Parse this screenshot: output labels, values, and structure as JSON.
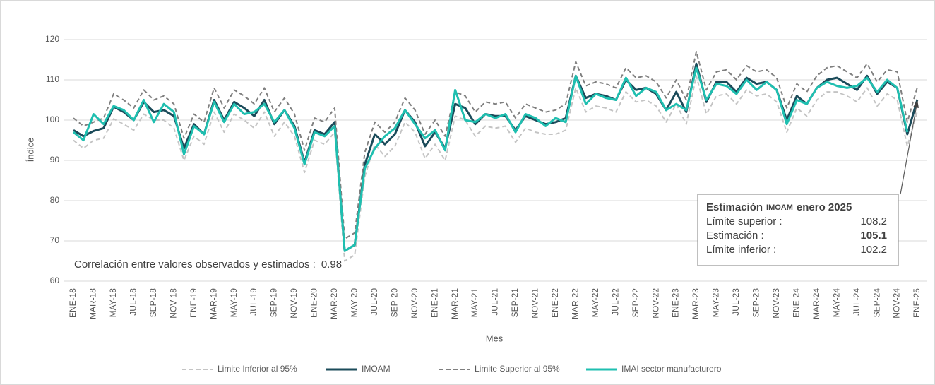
{
  "chart_data": {
    "type": "line",
    "y_label": "Índice",
    "x_label": "Mes",
    "categories": [
      "ENE-18",
      null,
      "MAR-18",
      null,
      "MAY-18",
      null,
      "JUL-18",
      null,
      "SEP-18",
      null,
      "NOV-18",
      null,
      "ENE-19",
      null,
      "MAR-19",
      null,
      "MAY-19",
      null,
      "JUL-19",
      null,
      "SEP-19",
      null,
      "NOV-19",
      null,
      "ENE-20",
      null,
      "MAR-20",
      null,
      "MAY-20",
      null,
      "JUL-20",
      null,
      "SEP-20",
      null,
      "NOV-20",
      null,
      "ENE-21",
      null,
      "MAR-21",
      null,
      "MAY-21",
      null,
      "JUL-21",
      null,
      "SEP-21",
      null,
      "NOV-21",
      null,
      "ENE-22",
      null,
      "MAR-22",
      null,
      "MAY-22",
      null,
      "JUL-22",
      null,
      "SEP-22",
      null,
      "NOV-22",
      null,
      "ENE-23",
      null,
      "MAR-23",
      null,
      "MAY-23",
      null,
      "JUL-23",
      null,
      "SEP-23",
      null,
      "NOV-23",
      null,
      "ENE-24",
      null,
      "MAR-24",
      null,
      "MAY-24",
      null,
      "JUL-24",
      null,
      "SEP-24",
      null,
      "NOV-24",
      null,
      "ENE-25"
    ],
    "series": [
      {
        "name": "Limite Inferior al 95%",
        "color": "#c4c4c4",
        "dash": true,
        "values": [
          95,
          93,
          95,
          95.5,
          100.3,
          99,
          97.5,
          101.5,
          100,
          100,
          98,
          90,
          96,
          94,
          102,
          97,
          101.5,
          100,
          98,
          102,
          96,
          99.5,
          96,
          87,
          95,
          94,
          97,
          65,
          66.5,
          86,
          94,
          91,
          93.5,
          99.5,
          97,
          90.5,
          94,
          90,
          101,
          100,
          96,
          98.5,
          98,
          98.5,
          94.5,
          98,
          97,
          96.5,
          96.5,
          97.5,
          108,
          102,
          103.5,
          103,
          102,
          107,
          104.5,
          105,
          103.5,
          99.5,
          104,
          99,
          111,
          101.5,
          106,
          106.5,
          104,
          107.5,
          106,
          106.5,
          104.5,
          97,
          103,
          101,
          105,
          107,
          107,
          106,
          104.5,
          108,
          103.5,
          106.5,
          105,
          93.5,
          102.2
        ]
      },
      {
        "name": "IMOAM",
        "color": "#1b4b5a",
        "dash": false,
        "values": [
          97.5,
          96,
          97.3,
          98,
          103.3,
          102,
          100,
          104.5,
          102,
          102.5,
          101,
          93,
          99,
          96.5,
          105,
          100,
          104.5,
          103,
          101,
          105,
          99,
          102.5,
          98.5,
          89.5,
          97.5,
          96.5,
          99.5,
          67.5,
          69,
          89,
          96.5,
          94,
          96.5,
          102.5,
          99.5,
          93.5,
          97,
          93,
          104,
          103,
          99,
          101.5,
          101,
          101,
          97.5,
          101,
          100,
          99,
          99.5,
          100.5,
          111,
          105.5,
          106.5,
          106,
          105,
          110,
          107.5,
          108,
          106.5,
          102.5,
          107,
          102,
          114,
          104.5,
          109.5,
          109.5,
          107,
          110.5,
          109,
          109.5,
          107.5,
          100,
          106,
          104,
          108,
          110,
          110.5,
          109,
          107.5,
          111,
          106.5,
          109.5,
          108,
          96.5,
          105.1
        ]
      },
      {
        "name": "Limite Superior al 95%",
        "color": "#7f7f7f",
        "dash": true,
        "values": [
          100.5,
          98.5,
          99.5,
          100.5,
          106.5,
          105,
          103,
          107.5,
          105,
          106,
          104,
          95.5,
          101.5,
          99.5,
          108,
          103,
          107.5,
          106,
          104,
          108,
          102,
          105.5,
          101.5,
          92.5,
          100.5,
          99.5,
          103,
          70.5,
          72,
          92,
          99.5,
          97,
          99.5,
          105.5,
          102.5,
          96.5,
          100,
          96,
          107,
          106,
          102,
          104.5,
          104,
          104.5,
          100.5,
          104,
          103,
          102,
          102.5,
          104,
          114.5,
          108.5,
          109.5,
          109,
          108,
          113,
          110.5,
          111,
          109.5,
          105.5,
          110,
          105,
          117,
          107.5,
          112,
          112.5,
          110,
          113.5,
          112,
          112.5,
          110.5,
          103,
          109,
          107,
          111,
          113,
          113.5,
          112,
          110.5,
          114,
          109.5,
          112.5,
          112,
          99.5,
          108.2
        ]
      },
      {
        "name": "IMAI sector manufacturero",
        "color": "#1fbfb0",
        "dash": false,
        "values": [
          97,
          95,
          101.5,
          99,
          103.5,
          102.5,
          100,
          105,
          99.5,
          104,
          102,
          91.5,
          98.5,
          96.5,
          104.5,
          99.5,
          104,
          101.5,
          102,
          104,
          99.5,
          102.5,
          98,
          89,
          97,
          96,
          98.5,
          67.5,
          69,
          88,
          93,
          96,
          98,
          102.5,
          99,
          95.5,
          97.5,
          92.5,
          107.5,
          100,
          99.5,
          101.5,
          100.5,
          101.5,
          97,
          101.5,
          100.5,
          98.5,
          100.5,
          99.5,
          111,
          104,
          106.5,
          105.5,
          105,
          110.5,
          106,
          108,
          107,
          102.5,
          104,
          102.5,
          113,
          105,
          109,
          108.5,
          106.5,
          110,
          107.5,
          109.5,
          107.5,
          99,
          105,
          104,
          108,
          109.5,
          108.5,
          108,
          108.5,
          110.5,
          107,
          110,
          108,
          97,
          null
        ]
      }
    ],
    "ylim": [
      60,
      120
    ],
    "yticks": [
      60,
      70,
      80,
      90,
      100,
      110,
      120
    ],
    "grid": true,
    "legend": "bottom",
    "correlation": {
      "label": "Correlación entre valores observados y estimados :",
      "value": 0.98
    },
    "annotation": {
      "title": [
        "Estimación",
        "IMOAM",
        "enero 2025"
      ],
      "rows": [
        {
          "label": "Límite superior :",
          "value": 108.2
        },
        {
          "label": "Estimación :",
          "value": 105.1
        },
        {
          "label": "Límite inferior :",
          "value": 102.2
        }
      ]
    }
  }
}
